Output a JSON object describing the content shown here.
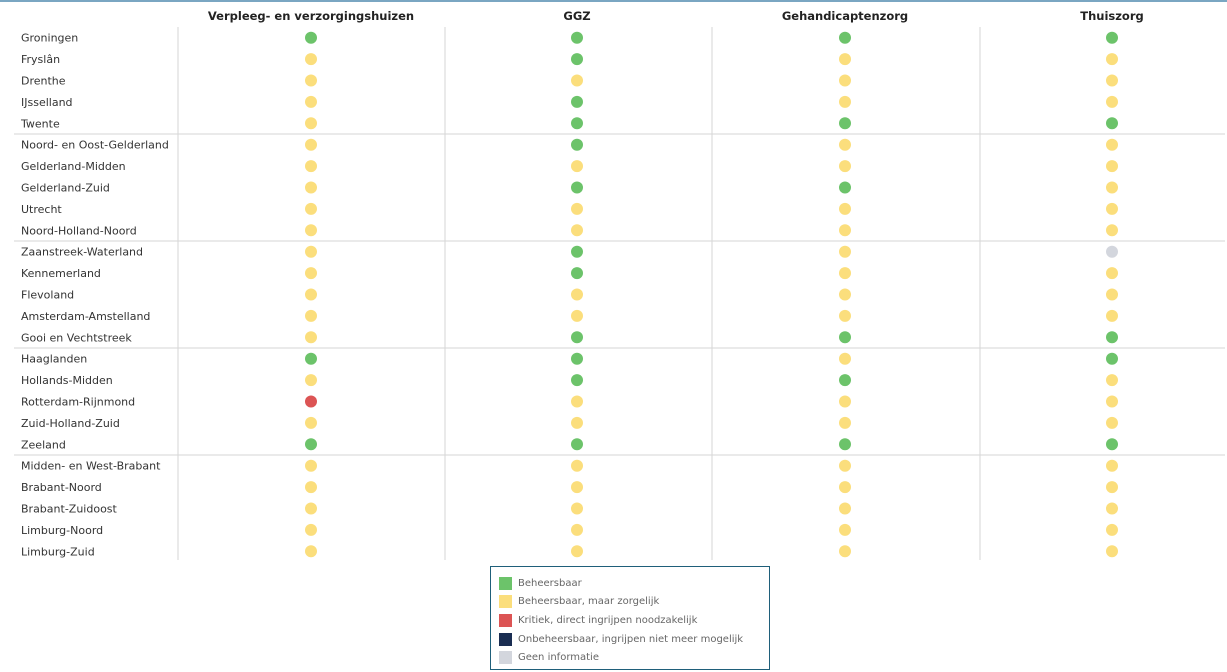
{
  "colors": {
    "Beheersbaar": "#6cc36a",
    "Zorgelijk": "#fbde7c",
    "Kritiek": "#dc5454",
    "Onbeheersbaar": "#1a2d52",
    "Geen": "#d3d6dd",
    "grid": "#d6d6d6"
  },
  "legend": [
    {
      "label": "Beheersbaar",
      "color": "#6cc36a"
    },
    {
      "label": "Beheersbaar, maar zorgelijk",
      "color": "#fbde7c"
    },
    {
      "label": "Kritiek, direct ingrijpen noodzakelijk",
      "color": "#dc5454"
    },
    {
      "label": "Onbeheersbaar, ingrijpen niet meer mogelijk",
      "color": "#1a2d52"
    },
    {
      "label": "Geen informatie",
      "color": "#d3d6dd"
    }
  ],
  "chart_data": {
    "type": "heatmap",
    "columns": [
      "Verpleeg- en verzorgingshuizen",
      "GGZ",
      "Gehandicaptenzorg",
      "Thuiszorg"
    ],
    "rows": [
      "Groningen",
      "Fryslân",
      "Drenthe",
      "IJsselland",
      "Twente",
      "Noord- en Oost-Gelderland",
      "Gelderland-Midden",
      "Gelderland-Zuid",
      "Utrecht",
      "Noord-Holland-Noord",
      "Zaanstreek-Waterland",
      "Kennemerland",
      "Flevoland",
      "Amsterdam-Amstelland",
      "Gooi en Vechtstreek",
      "Haaglanden",
      "Hollands-Midden",
      "Rotterdam-Rijnmond",
      "Zuid-Holland-Zuid",
      "Zeeland",
      "Midden- en West-Brabant",
      "Brabant-Noord",
      "Brabant-Zuidoost",
      "Limburg-Noord",
      "Limburg-Zuid"
    ],
    "row_groups": [
      5,
      5,
      5,
      5,
      5
    ],
    "values": [
      [
        "Beheersbaar",
        "Beheersbaar",
        "Beheersbaar",
        "Beheersbaar"
      ],
      [
        "Beheersbaar, maar zorgelijk",
        "Beheersbaar",
        "Beheersbaar, maar zorgelijk",
        "Beheersbaar, maar zorgelijk"
      ],
      [
        "Beheersbaar, maar zorgelijk",
        "Beheersbaar, maar zorgelijk",
        "Beheersbaar, maar zorgelijk",
        "Beheersbaar, maar zorgelijk"
      ],
      [
        "Beheersbaar, maar zorgelijk",
        "Beheersbaar",
        "Beheersbaar, maar zorgelijk",
        "Beheersbaar, maar zorgelijk"
      ],
      [
        "Beheersbaar, maar zorgelijk",
        "Beheersbaar",
        "Beheersbaar",
        "Beheersbaar"
      ],
      [
        "Beheersbaar, maar zorgelijk",
        "Beheersbaar",
        "Beheersbaar, maar zorgelijk",
        "Beheersbaar, maar zorgelijk"
      ],
      [
        "Beheersbaar, maar zorgelijk",
        "Beheersbaar, maar zorgelijk",
        "Beheersbaar, maar zorgelijk",
        "Beheersbaar, maar zorgelijk"
      ],
      [
        "Beheersbaar, maar zorgelijk",
        "Beheersbaar",
        "Beheersbaar",
        "Beheersbaar, maar zorgelijk"
      ],
      [
        "Beheersbaar, maar zorgelijk",
        "Beheersbaar, maar zorgelijk",
        "Beheersbaar, maar zorgelijk",
        "Beheersbaar, maar zorgelijk"
      ],
      [
        "Beheersbaar, maar zorgelijk",
        "Beheersbaar, maar zorgelijk",
        "Beheersbaar, maar zorgelijk",
        "Beheersbaar, maar zorgelijk"
      ],
      [
        "Beheersbaar, maar zorgelijk",
        "Beheersbaar",
        "Beheersbaar, maar zorgelijk",
        "Geen informatie"
      ],
      [
        "Beheersbaar, maar zorgelijk",
        "Beheersbaar",
        "Beheersbaar, maar zorgelijk",
        "Beheersbaar, maar zorgelijk"
      ],
      [
        "Beheersbaar, maar zorgelijk",
        "Beheersbaar, maar zorgelijk",
        "Beheersbaar, maar zorgelijk",
        "Beheersbaar, maar zorgelijk"
      ],
      [
        "Beheersbaar, maar zorgelijk",
        "Beheersbaar, maar zorgelijk",
        "Beheersbaar, maar zorgelijk",
        "Beheersbaar, maar zorgelijk"
      ],
      [
        "Beheersbaar, maar zorgelijk",
        "Beheersbaar",
        "Beheersbaar",
        "Beheersbaar"
      ],
      [
        "Beheersbaar",
        "Beheersbaar",
        "Beheersbaar, maar zorgelijk",
        "Beheersbaar"
      ],
      [
        "Beheersbaar, maar zorgelijk",
        "Beheersbaar",
        "Beheersbaar",
        "Beheersbaar, maar zorgelijk"
      ],
      [
        "Kritiek, direct ingrijpen noodzakelijk",
        "Beheersbaar, maar zorgelijk",
        "Beheersbaar, maar zorgelijk",
        "Beheersbaar, maar zorgelijk"
      ],
      [
        "Beheersbaar, maar zorgelijk",
        "Beheersbaar, maar zorgelijk",
        "Beheersbaar, maar zorgelijk",
        "Beheersbaar, maar zorgelijk"
      ],
      [
        "Beheersbaar",
        "Beheersbaar",
        "Beheersbaar",
        "Beheersbaar"
      ],
      [
        "Beheersbaar, maar zorgelijk",
        "Beheersbaar, maar zorgelijk",
        "Beheersbaar, maar zorgelijk",
        "Beheersbaar, maar zorgelijk"
      ],
      [
        "Beheersbaar, maar zorgelijk",
        "Beheersbaar, maar zorgelijk",
        "Beheersbaar, maar zorgelijk",
        "Beheersbaar, maar zorgelijk"
      ],
      [
        "Beheersbaar, maar zorgelijk",
        "Beheersbaar, maar zorgelijk",
        "Beheersbaar, maar zorgelijk",
        "Beheersbaar, maar zorgelijk"
      ],
      [
        "Beheersbaar, maar zorgelijk",
        "Beheersbaar, maar zorgelijk",
        "Beheersbaar, maar zorgelijk",
        "Beheersbaar, maar zorgelijk"
      ],
      [
        "Beheersbaar, maar zorgelijk",
        "Beheersbaar, maar zorgelijk",
        "Beheersbaar, maar zorgelijk",
        "Beheersbaar, maar zorgelijk"
      ]
    ]
  }
}
